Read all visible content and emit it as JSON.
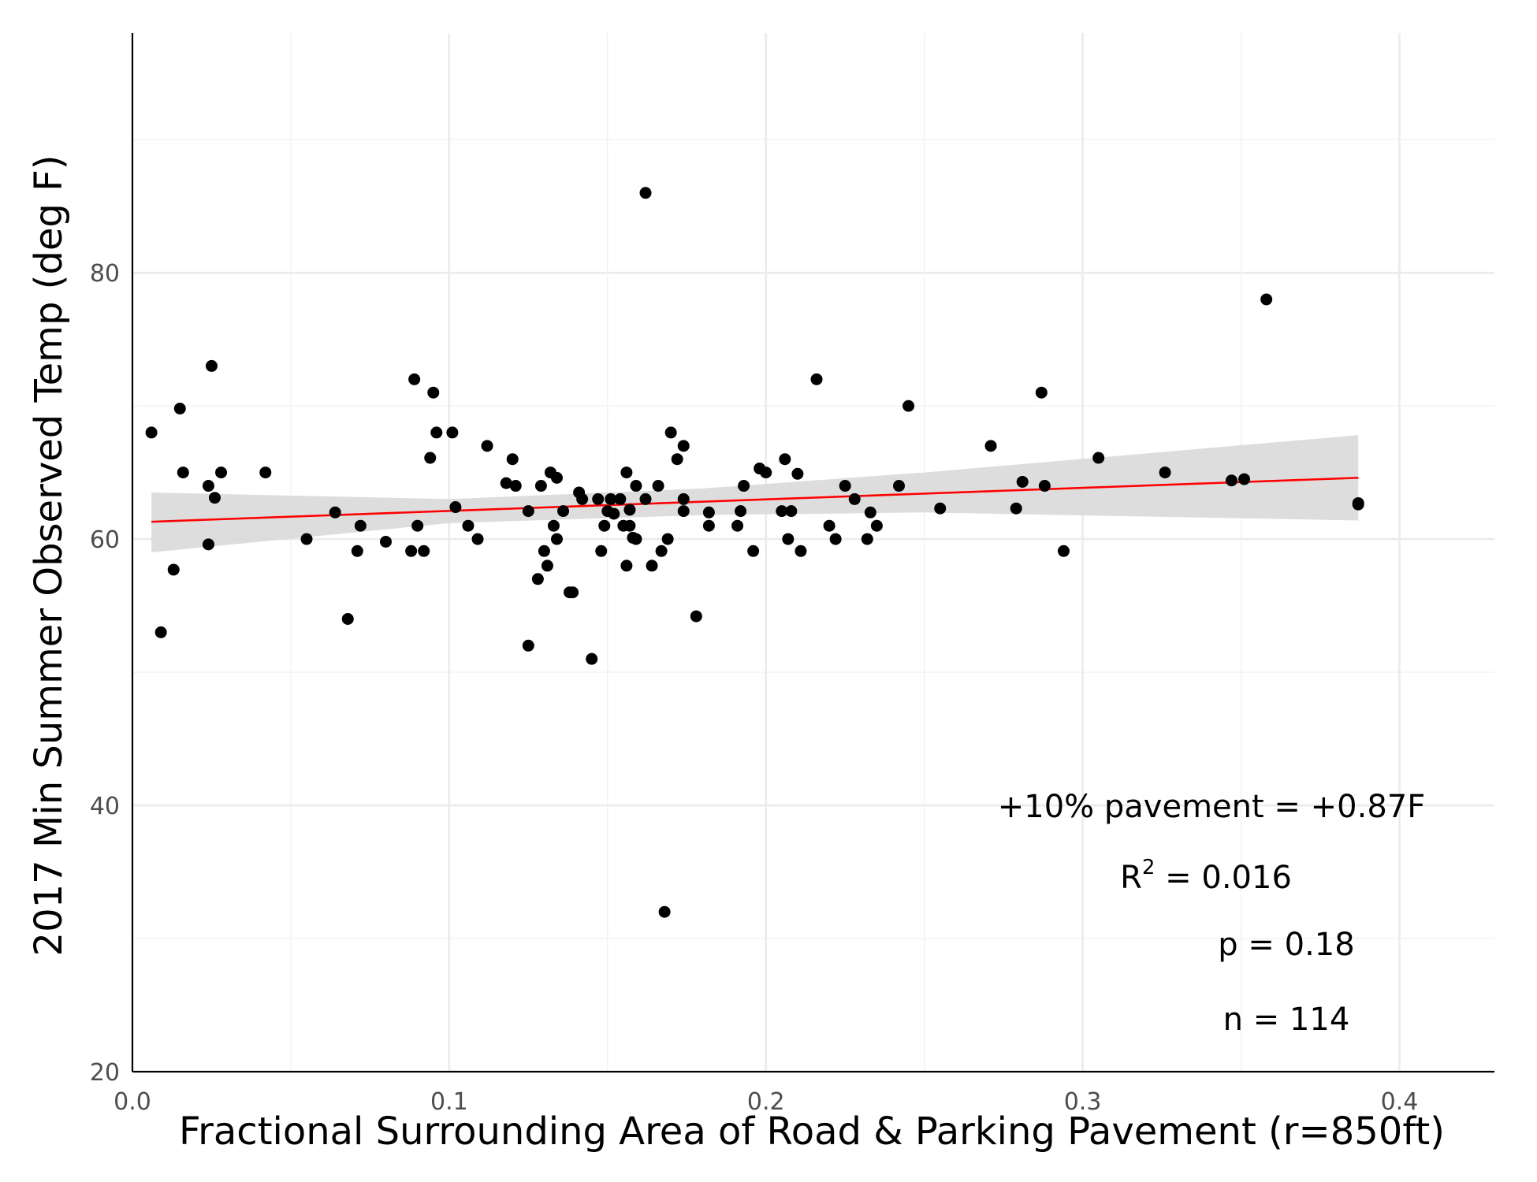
{
  "chart_data": {
    "type": "scatter",
    "title": "",
    "xlabel": "Fractional Surrounding Area of Road & Parking Pavement (r=850ft)",
    "ylabel": "2017 Min Summer Observed Temp (deg F)",
    "xlim": [
      0.0,
      0.43
    ],
    "ylim": [
      20,
      98
    ],
    "x_ticks": [
      "0.0",
      "0.1",
      "0.2",
      "0.3",
      "0.4"
    ],
    "y_ticks": [
      "20",
      "40",
      "60",
      "80"
    ],
    "grid": true,
    "colors": {
      "points": "#000000",
      "fit_line": "#ff0000",
      "ci_band": "#d9d9d9"
    },
    "fit": {
      "x": [
        0.006,
        0.387
      ],
      "y": [
        61.3,
        64.6
      ]
    },
    "ci_band": {
      "x": [
        0.006,
        0.1,
        0.18,
        0.25,
        0.387
      ],
      "upper": [
        63.5,
        63.0,
        63.8,
        65.0,
        67.8
      ],
      "lower": [
        59.0,
        61.2,
        61.8,
        62.0,
        61.4
      ]
    },
    "annotations": [
      {
        "id": "effect",
        "text": "+10% pavement = +0.87F"
      },
      {
        "id": "r2",
        "prefix": "R",
        "sup": "2",
        "text": " = 0.016"
      },
      {
        "id": "p",
        "text": "p = 0.18"
      },
      {
        "id": "n",
        "text": "n = 114"
      }
    ],
    "points": [
      [
        0.006,
        68.0
      ],
      [
        0.009,
        53.0
      ],
      [
        0.013,
        57.7
      ],
      [
        0.015,
        69.8
      ],
      [
        0.016,
        65.0
      ],
      [
        0.024,
        64.0
      ],
      [
        0.024,
        59.6
      ],
      [
        0.025,
        73.0
      ],
      [
        0.026,
        63.1
      ],
      [
        0.028,
        65.0
      ],
      [
        0.042,
        65.0
      ],
      [
        0.055,
        60.0
      ],
      [
        0.064,
        62.0
      ],
      [
        0.068,
        54.0
      ],
      [
        0.071,
        59.1
      ],
      [
        0.072,
        61.0
      ],
      [
        0.08,
        59.8
      ],
      [
        0.088,
        59.1
      ],
      [
        0.089,
        72.0
      ],
      [
        0.09,
        61.0
      ],
      [
        0.092,
        59.1
      ],
      [
        0.094,
        66.1
      ],
      [
        0.095,
        71.0
      ],
      [
        0.096,
        68.0
      ],
      [
        0.101,
        68.0
      ],
      [
        0.102,
        62.4
      ],
      [
        0.106,
        61.0
      ],
      [
        0.109,
        60.0
      ],
      [
        0.112,
        67.0
      ],
      [
        0.118,
        64.2
      ],
      [
        0.12,
        66.0
      ],
      [
        0.121,
        64.0
      ],
      [
        0.125,
        52.0
      ],
      [
        0.125,
        62.1
      ],
      [
        0.128,
        57.0
      ],
      [
        0.129,
        64.0
      ],
      [
        0.13,
        59.1
      ],
      [
        0.131,
        58.0
      ],
      [
        0.132,
        65.0
      ],
      [
        0.133,
        61.0
      ],
      [
        0.134,
        60.0
      ],
      [
        0.134,
        64.6
      ],
      [
        0.136,
        62.1
      ],
      [
        0.138,
        56.0
      ],
      [
        0.139,
        56.0
      ],
      [
        0.141,
        63.5
      ],
      [
        0.142,
        63.0
      ],
      [
        0.145,
        51.0
      ],
      [
        0.147,
        63.0
      ],
      [
        0.148,
        59.1
      ],
      [
        0.149,
        61.0
      ],
      [
        0.15,
        62.1
      ],
      [
        0.151,
        63.0
      ],
      [
        0.152,
        61.9
      ],
      [
        0.154,
        63.0
      ],
      [
        0.155,
        61.0
      ],
      [
        0.156,
        65.0
      ],
      [
        0.156,
        58.0
      ],
      [
        0.157,
        61.0
      ],
      [
        0.157,
        62.2
      ],
      [
        0.158,
        60.1
      ],
      [
        0.159,
        64.0
      ],
      [
        0.159,
        60.0
      ],
      [
        0.162,
        86.0
      ],
      [
        0.162,
        63.0
      ],
      [
        0.164,
        58.0
      ],
      [
        0.166,
        64.0
      ],
      [
        0.167,
        59.1
      ],
      [
        0.168,
        32.0
      ],
      [
        0.169,
        60.0
      ],
      [
        0.17,
        68.0
      ],
      [
        0.172,
        66.0
      ],
      [
        0.174,
        67.0
      ],
      [
        0.174,
        63.0
      ],
      [
        0.174,
        62.1
      ],
      [
        0.178,
        54.2
      ],
      [
        0.182,
        62.0
      ],
      [
        0.182,
        61.0
      ],
      [
        0.191,
        61.0
      ],
      [
        0.192,
        62.1
      ],
      [
        0.193,
        64.0
      ],
      [
        0.196,
        59.1
      ],
      [
        0.198,
        65.3
      ],
      [
        0.2,
        65.0
      ],
      [
        0.205,
        62.1
      ],
      [
        0.206,
        66.0
      ],
      [
        0.207,
        60.0
      ],
      [
        0.208,
        62.1
      ],
      [
        0.21,
        64.9
      ],
      [
        0.211,
        59.1
      ],
      [
        0.216,
        72.0
      ],
      [
        0.22,
        61.0
      ],
      [
        0.222,
        60.0
      ],
      [
        0.225,
        64.0
      ],
      [
        0.228,
        63.0
      ],
      [
        0.232,
        60.0
      ],
      [
        0.233,
        62.0
      ],
      [
        0.235,
        61.0
      ],
      [
        0.242,
        64.0
      ],
      [
        0.245,
        70.0
      ],
      [
        0.255,
        62.3
      ],
      [
        0.271,
        67.0
      ],
      [
        0.279,
        62.3
      ],
      [
        0.281,
        64.3
      ],
      [
        0.287,
        71.0
      ],
      [
        0.288,
        64.0
      ],
      [
        0.294,
        59.1
      ],
      [
        0.305,
        66.1
      ],
      [
        0.326,
        65.0
      ],
      [
        0.347,
        64.4
      ],
      [
        0.351,
        64.5
      ],
      [
        0.358,
        78.0
      ],
      [
        0.387,
        62.6
      ],
      [
        0.387,
        62.7
      ]
    ]
  }
}
